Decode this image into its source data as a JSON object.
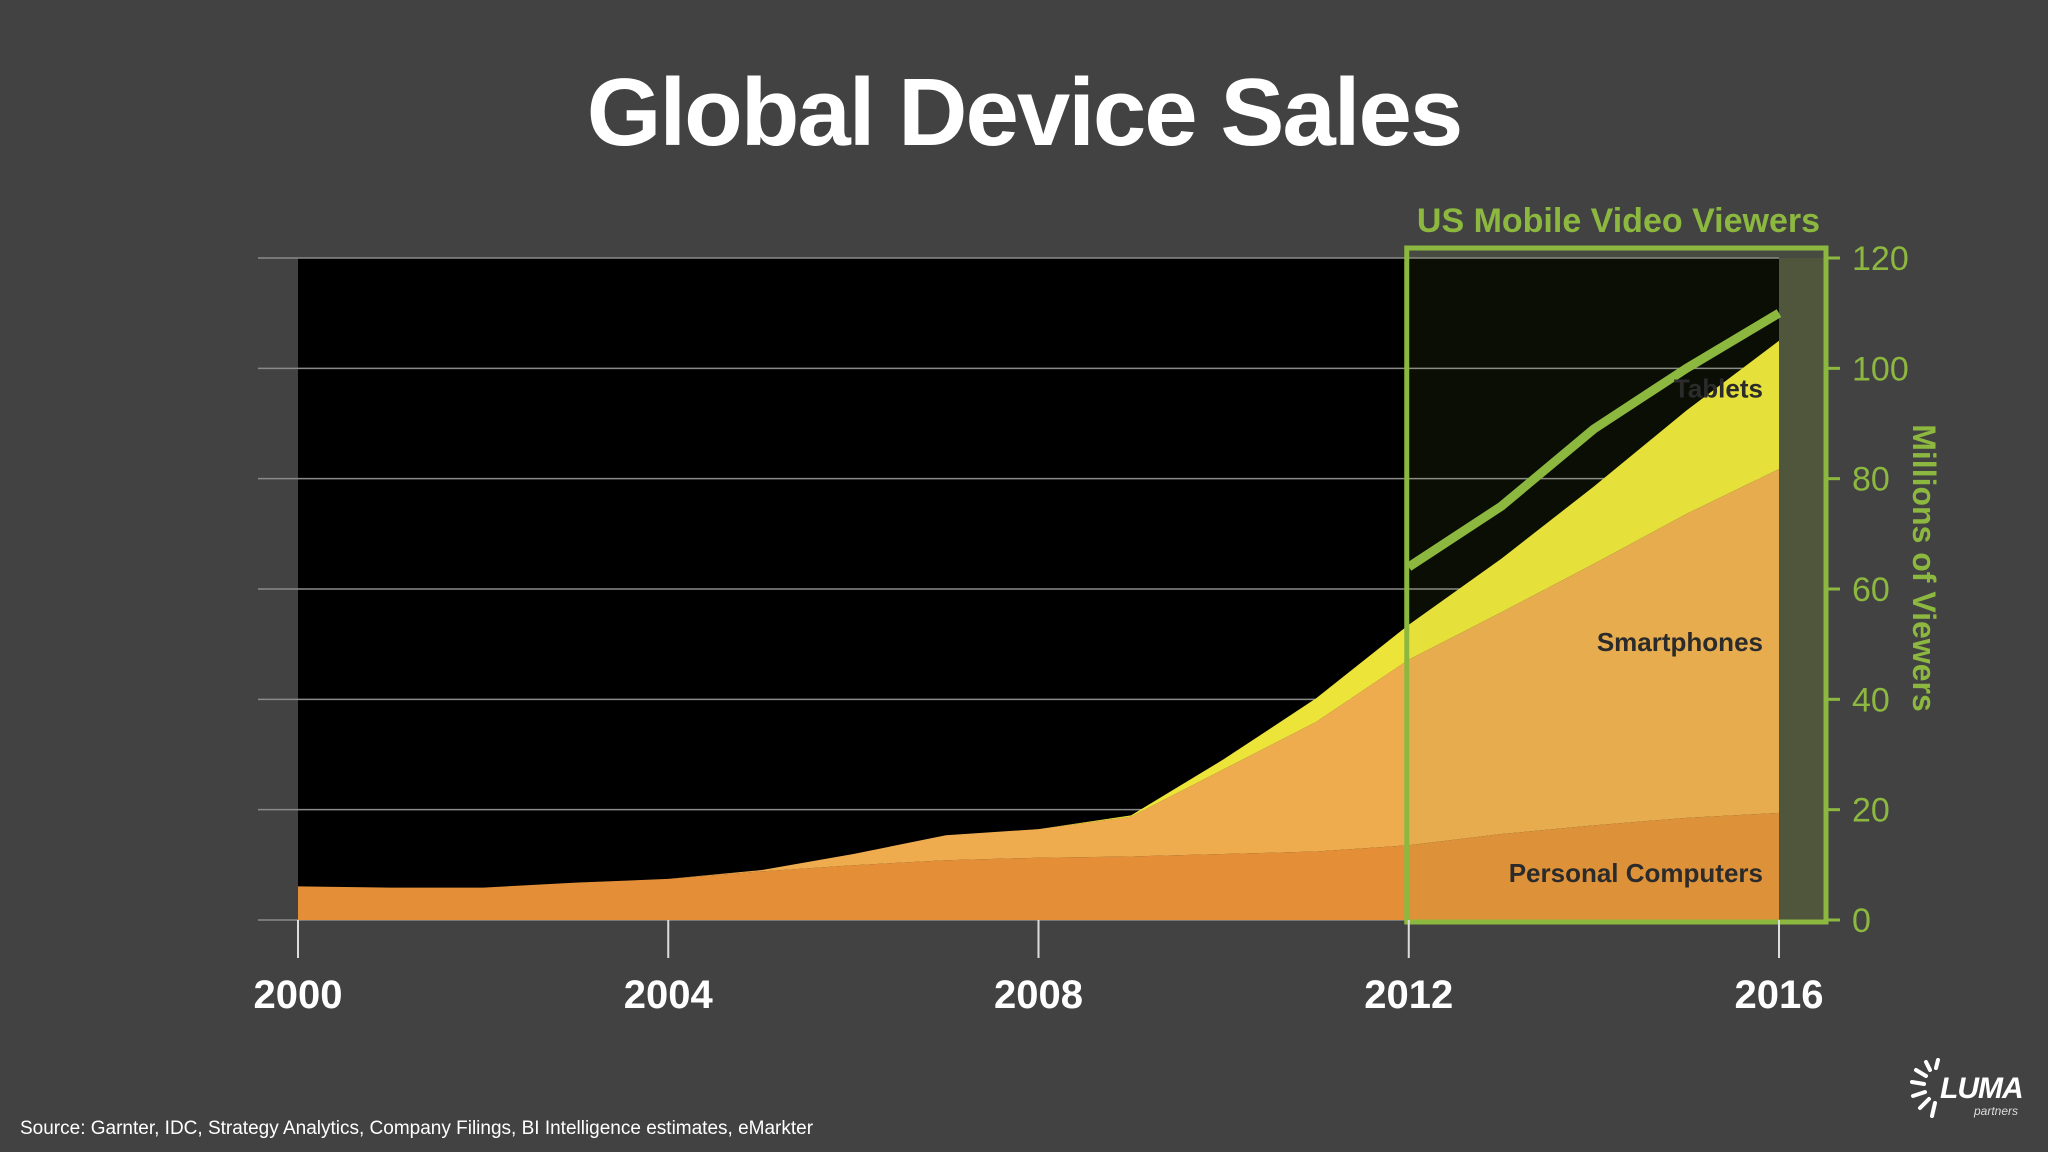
{
  "title": "Global Device Sales",
  "source": "Source: Garnter, IDC, Strategy Analytics, Company Filings, BI Intelligence estimates, eMarkter",
  "logo": {
    "name": "LUMA",
    "sub": "partners"
  },
  "colors": {
    "background": "#424242",
    "plot_background": "#000000",
    "personal_computers": "#e48f38",
    "smartphones": "#efac4f",
    "tablets": "#ede43a",
    "viewers_line": "#8db840",
    "highlight_box": "#8db840"
  },
  "chart_data": {
    "type": "area",
    "stacked": true,
    "x": [
      2000,
      2001,
      2002,
      2003,
      2004,
      2005,
      2006,
      2007,
      2008,
      2009,
      2010,
      2011,
      2012,
      2013,
      2014,
      2015,
      2016
    ],
    "x_ticks": [
      "2000",
      "2004",
      "2008",
      "2012",
      "2016"
    ],
    "xlim": [
      2000,
      2016
    ],
    "grid": true,
    "series": [
      {
        "name": "Personal Computers",
        "values": [
          135,
          130,
          130,
          150,
          165,
          195,
          220,
          240,
          250,
          255,
          265,
          275,
          300,
          345,
          380,
          410,
          430
        ]
      },
      {
        "name": "Smartphones",
        "values": [
          0,
          0,
          0,
          0,
          0,
          5,
          45,
          100,
          115,
          160,
          340,
          520,
          745,
          890,
          1050,
          1220,
          1380
        ]
      },
      {
        "name": "Tablets",
        "values": [
          0,
          0,
          0,
          0,
          0,
          0,
          0,
          0,
          0,
          5,
          40,
          95,
          140,
          215,
          310,
          415,
          515
        ]
      }
    ],
    "highlight": {
      "title": "US Mobile Video Viewers",
      "ylabel": "Millions of Viewers",
      "y_ticks": [
        "0",
        "20",
        "40",
        "60",
        "80",
        "100",
        "120"
      ],
      "ylim": [
        0,
        120
      ],
      "series": {
        "x": [
          2012,
          2013,
          2014,
          2015,
          2016
        ],
        "values": [
          64,
          75,
          89,
          100,
          110
        ]
      }
    }
  }
}
